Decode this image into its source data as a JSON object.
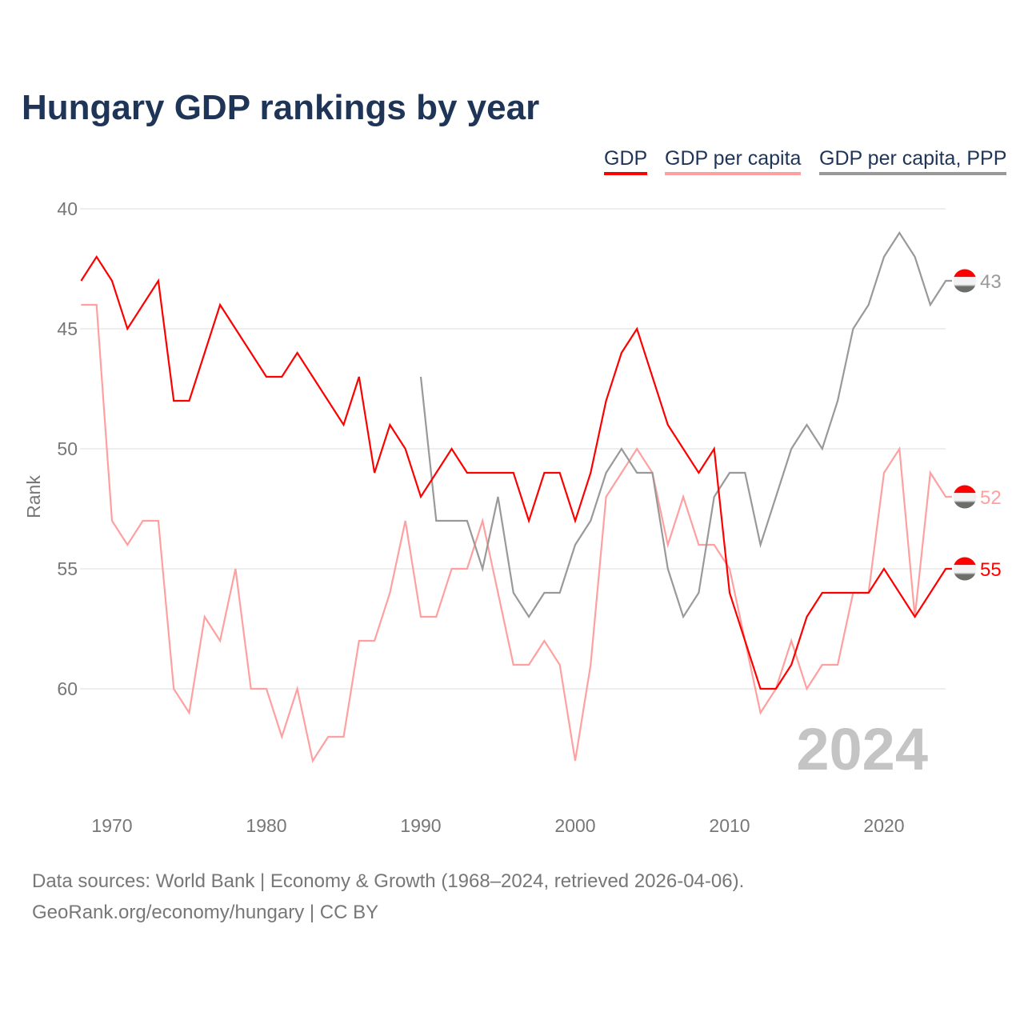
{
  "chart_data": {
    "type": "line",
    "title": "Hungary GDP rankings by year",
    "ylabel": "Rank",
    "xlabel": "",
    "ylim": [
      38,
      64.5
    ],
    "y_inverted": true,
    "xlim": [
      1968,
      2024
    ],
    "yticks": [
      40,
      45,
      50,
      55,
      60
    ],
    "xticks": [
      1970,
      1980,
      1990,
      2000,
      2010,
      2020
    ],
    "grid": true,
    "legend_position": "top-right",
    "current_year_label": "2024",
    "series": [
      {
        "name": "GDP",
        "color": "#ff0000",
        "start_year": 1968,
        "values": [
          43,
          42,
          43,
          45,
          44,
          43,
          48,
          48,
          46,
          44,
          45,
          46,
          47,
          47,
          46,
          47,
          48,
          49,
          47,
          51,
          49,
          50,
          52,
          51,
          50,
          51,
          51,
          51,
          51,
          53,
          51,
          51,
          53,
          51,
          48,
          46,
          45,
          47,
          49,
          50,
          51,
          50,
          56,
          58,
          60,
          60,
          59,
          57,
          56,
          56,
          56,
          56,
          55,
          56,
          57,
          56,
          55
        ],
        "end_label": "55"
      },
      {
        "name": "GDP per capita",
        "color": "#ffa0a0",
        "start_year": 1968,
        "values": [
          44,
          44,
          53,
          54,
          53,
          53,
          60,
          61,
          57,
          58,
          55,
          60,
          60,
          62,
          60,
          63,
          62,
          62,
          58,
          58,
          56,
          53,
          57,
          57,
          55,
          55,
          53,
          56,
          59,
          59,
          58,
          59,
          63,
          59,
          52,
          51,
          50,
          51,
          54,
          52,
          54,
          54,
          55,
          58,
          61,
          60,
          58,
          60,
          59,
          59,
          56,
          56,
          51,
          50,
          57,
          51,
          52
        ],
        "end_label": "52"
      },
      {
        "name": "GDP per capita, PPP",
        "color": "#999999",
        "start_year": 1990,
        "values": [
          47,
          53,
          53,
          53,
          55,
          52,
          56,
          57,
          56,
          56,
          54,
          53,
          51,
          50,
          51,
          51,
          55,
          57,
          56,
          52,
          51,
          51,
          54,
          52,
          50,
          49,
          50,
          48,
          45,
          44,
          42,
          41,
          42,
          44,
          43
        ],
        "end_label": "43"
      }
    ]
  },
  "footer": {
    "line1": "Data sources: World Bank | Economy & Growth (1968–2024, retrieved 2026-04-06).",
    "line2": "GeoRank.org/economy/hungary | CC BY"
  },
  "flag": {
    "top": "#ff0000",
    "middle": "#f2f2f2",
    "bottom": "#6a6d68"
  }
}
